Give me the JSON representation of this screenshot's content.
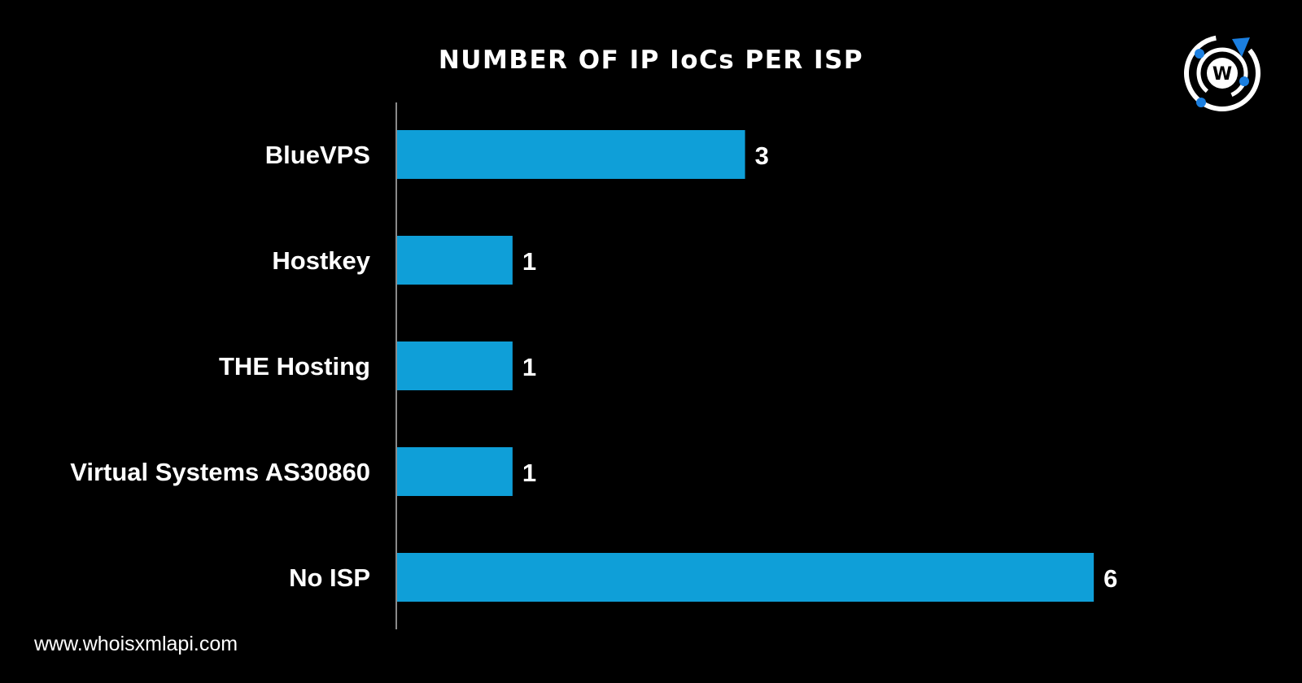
{
  "footer": {
    "url": "www.whoisxmlapi.com"
  },
  "logo": {
    "icon": "whoisxmlapi-logo-icon",
    "letter": "W",
    "accent_color": "#1b7fe0"
  },
  "chart_data": {
    "type": "bar",
    "orientation": "horizontal",
    "title": "NUMBER OF IP IoCs PER ISP",
    "xlabel": "",
    "ylabel": "",
    "categories": [
      "BlueVPS",
      "Hostkey",
      "THE Hosting",
      "Virtual Systems AS30860",
      "No ISP"
    ],
    "values": [
      3,
      1,
      1,
      1,
      6
    ],
    "data_labels": [
      "3",
      "1",
      "1",
      "1",
      "6"
    ],
    "xlim": [
      0,
      6.3
    ],
    "grid": false,
    "legend": "none",
    "bar_color": "#0f9fd8",
    "axis_color": "#8a8a8a",
    "background_color": "#000000"
  }
}
